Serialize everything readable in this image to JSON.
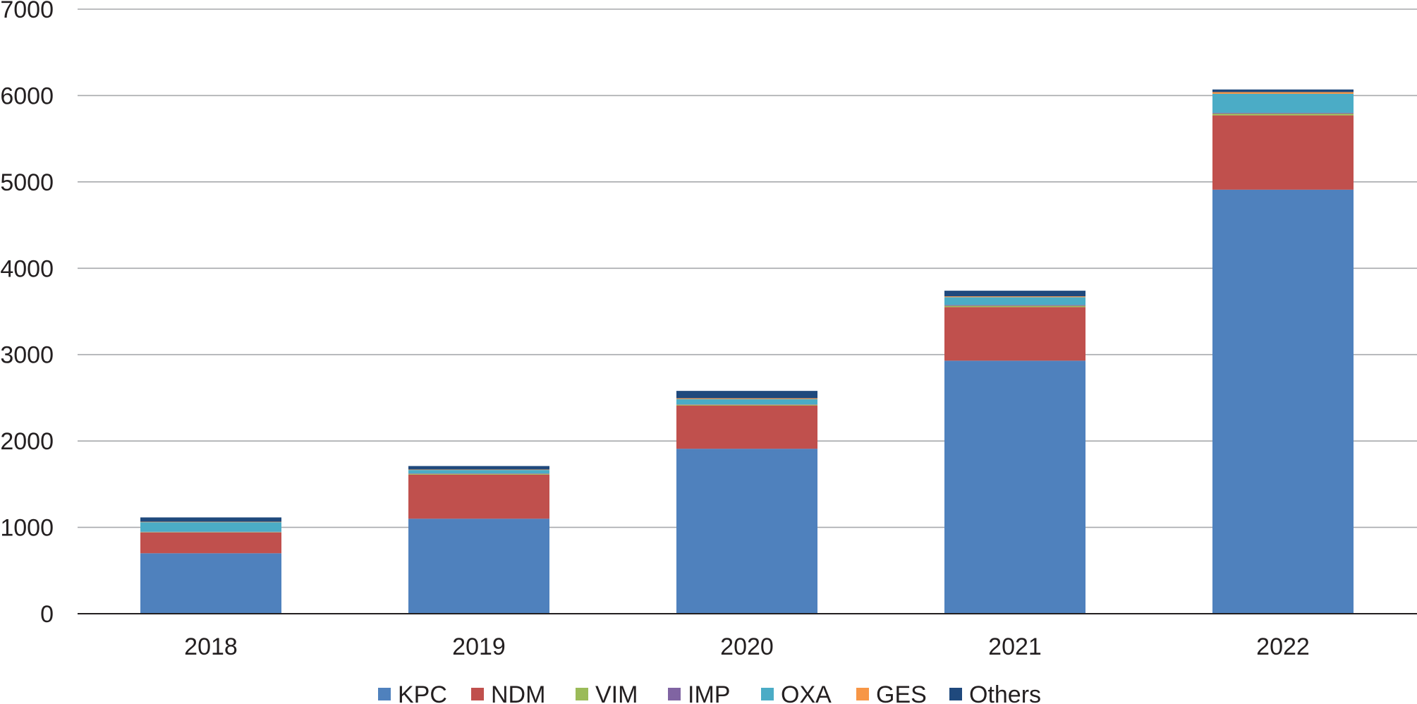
{
  "chart_data": {
    "type": "bar",
    "stacked": true,
    "title": "",
    "xlabel": "",
    "ylabel": "",
    "categories": [
      "2018",
      "2019",
      "2020",
      "2021",
      "2022"
    ],
    "ylim": [
      0,
      7000
    ],
    "yticks": [
      "0",
      "1000",
      "2000",
      "3000",
      "4000",
      "5000",
      "6000",
      "7000"
    ],
    "grid": true,
    "legend_position": "bottom",
    "series": [
      {
        "name": "KPC",
        "color": "#4f81bd",
        "values": [
          700,
          1100,
          1910,
          2930,
          4910
        ]
      },
      {
        "name": "NDM",
        "color": "#c0504d",
        "values": [
          240,
          510,
          500,
          620,
          860
        ]
      },
      {
        "name": "VIM",
        "color": "#9bbb59",
        "values": [
          5,
          10,
          10,
          15,
          20
        ]
      },
      {
        "name": "IMP",
        "color": "#8064a2",
        "values": [
          5,
          5,
          5,
          10,
          10
        ]
      },
      {
        "name": "OXA",
        "color": "#4bacc6",
        "values": [
          110,
          40,
          60,
          90,
          220
        ]
      },
      {
        "name": "GES",
        "color": "#f79646",
        "values": [
          5,
          5,
          10,
          10,
          20
        ]
      },
      {
        "name": "Others",
        "color": "#1f497d",
        "values": [
          50,
          40,
          85,
          65,
          30
        ]
      }
    ]
  }
}
